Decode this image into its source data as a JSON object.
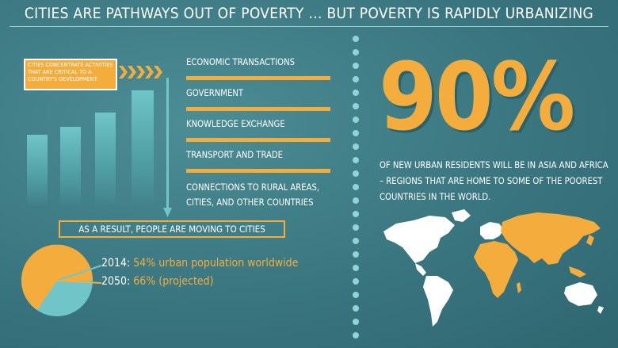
{
  "header": {
    "title": "CITIES ARE PATHWAYS OUT OF POVERTY … BUT POVERTY IS RAPIDLY URBANIZING"
  },
  "left_panel": {
    "callout": "CITIES CONCENTRATE ACTIVITIES THAT ARE CRITICAL TO A COUNTRY'S DEVELOPMENT:",
    "activities": [
      {
        "label": "ECONOMIC TRANSACTIONS"
      },
      {
        "label": "GOVERNMENT"
      },
      {
        "label": "KNOWLEDGE EXCHANGE"
      },
      {
        "label": "TRANSPORT AND TRADE"
      },
      {
        "label": "CONNECTIONS TO RURAL AREAS,",
        "label2": "CITIES, AND OTHER COUNTRIES"
      }
    ],
    "result": "AS A RESULT, PEOPLE ARE MOVING TO CITIES",
    "stats": [
      {
        "year": "2014:",
        "text": "54% urban population worldwide",
        "share": 0.54
      },
      {
        "year": "2050:",
        "text": "66% (projected)",
        "share": 0.66
      }
    ]
  },
  "right_panel": {
    "big_stat": "90%",
    "description": "OF NEW URBAN RESIDENTS WILL BE IN ASIA AND AFRICA – REGIONS THAT ARE HOME TO SOME OF THE POOREST COUNTRIES IN THE WORLD."
  },
  "colors": {
    "background": "#3f7d86",
    "accent": "#f4ad3d",
    "teal_light": "#6fc5c8",
    "white": "#ffffff"
  }
}
